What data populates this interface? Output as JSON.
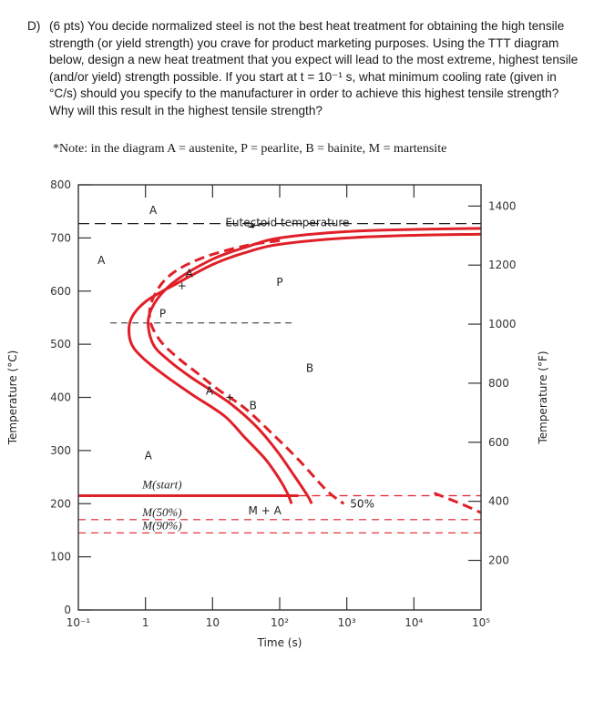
{
  "question": {
    "label": "D)",
    "text": "(6 pts) You decide normalized steel is not the best heat treatment for obtaining the high tensile strength (or yield strength) you crave for product marketing purposes. Using the TTT diagram below, design a new heat treatment that you expect will lead to the most extreme, highest tensile (and/or yield) strength possible. If you start at t = 10⁻¹ s, what minimum cooling rate (given in °C/s) should you specify to the manufacturer in order to achieve this highest tensile strength? Why will this result in the highest tensile strength?",
    "note": "*Note: in the diagram A = austenite, P = pearlite, B = bainite, M = martensite"
  },
  "chart_data": {
    "type": "line",
    "title": "",
    "xlabel": "Time (s)",
    "ylabel_left": "Temperature (°C)",
    "ylabel_right": "Temperature (°F)",
    "x_scale": "log",
    "xlim": [
      0.1,
      100000
    ],
    "ylim": [
      0,
      800
    ],
    "x_ticks": [
      {
        "value": 0.1,
        "label": "10⁻¹"
      },
      {
        "value": 1,
        "label": "1"
      },
      {
        "value": 10,
        "label": "10"
      },
      {
        "value": 100,
        "label": "10²"
      },
      {
        "value": 1000,
        "label": "10³"
      },
      {
        "value": 10000,
        "label": "10⁴"
      },
      {
        "value": 100000,
        "label": "10⁵"
      }
    ],
    "y_ticks_left": [
      {
        "value": 0,
        "label": "0"
      },
      {
        "value": 100,
        "label": "100"
      },
      {
        "value": 200,
        "label": "200"
      },
      {
        "value": 300,
        "label": "300"
      },
      {
        "value": 400,
        "label": "400"
      },
      {
        "value": 500,
        "label": "500"
      },
      {
        "value": 600,
        "label": "600"
      },
      {
        "value": 700,
        "label": "700"
      },
      {
        "value": 800,
        "label": "800"
      }
    ],
    "y_ticks_right_F": [
      {
        "value": 200,
        "label": "200"
      },
      {
        "value": 400,
        "label": "400"
      },
      {
        "value": 600,
        "label": "600"
      },
      {
        "value": 800,
        "label": "800"
      },
      {
        "value": 1000,
        "label": "1000"
      },
      {
        "value": 1200,
        "label": "1200"
      },
      {
        "value": 1400,
        "label": "1400"
      }
    ],
    "eutectoid": {
      "temperature": 727,
      "label": "Eutectoid temperature"
    },
    "pearlite_bainite_boundary": {
      "temperature": 540,
      "x_range": [
        0.3,
        150
      ]
    },
    "martensite_lines": [
      {
        "name": "M(start)",
        "temperature": 215
      },
      {
        "name": "M(50%)",
        "temperature": 170
      },
      {
        "name": "M(90%)",
        "temperature": 145
      }
    ],
    "series": [
      {
        "style": "solid",
        "points": [
          [
            100000,
            707
          ],
          [
            10000,
            705
          ],
          [
            1000,
            700
          ],
          [
            100,
            688
          ],
          [
            30,
            672
          ],
          [
            10,
            650
          ],
          [
            3,
            615
          ],
          [
            1,
            580
          ],
          [
            0.6,
            545
          ],
          [
            0.6,
            505
          ],
          [
            0.9,
            475
          ],
          [
            2,
            440
          ],
          [
            5,
            405
          ],
          [
            15,
            365
          ],
          [
            30,
            325
          ],
          [
            60,
            285
          ],
          [
            95,
            250
          ],
          [
            130,
            220
          ],
          [
            150,
            200
          ]
        ]
      },
      {
        "style": "solid",
        "points": [
          [
            100000,
            718
          ],
          [
            10000,
            716
          ],
          [
            1000,
            712
          ],
          [
            100,
            700
          ],
          [
            30,
            682
          ],
          [
            10,
            660
          ],
          [
            3,
            622
          ],
          [
            1.5,
            585
          ],
          [
            1.1,
            545
          ],
          [
            1.3,
            500
          ],
          [
            2.2,
            470
          ],
          [
            4.5,
            440
          ],
          [
            9,
            415
          ],
          [
            20,
            385
          ],
          [
            45,
            345
          ],
          [
            90,
            300
          ],
          [
            160,
            255
          ],
          [
            260,
            215
          ],
          [
            300,
            200
          ]
        ]
      },
      {
        "style": "dashed",
        "points": [
          [
            100,
            695
          ],
          [
            30,
            685
          ],
          [
            8,
            665
          ],
          [
            3,
            640
          ],
          [
            1.7,
            612
          ],
          [
            1.2,
            575
          ],
          [
            1.2,
            540
          ],
          [
            1.7,
            505
          ],
          [
            3,
            475
          ],
          [
            6,
            445
          ],
          [
            12,
            415
          ],
          [
            30,
            380
          ],
          [
            80,
            330
          ],
          [
            200,
            280
          ],
          [
            500,
            225
          ],
          [
            900,
            200
          ]
        ]
      },
      {
        "style": "dashed",
        "points": [
          [
            20000,
            220
          ],
          [
            50000,
            200
          ],
          [
            100000,
            183
          ]
        ]
      }
    ],
    "region_labels": [
      {
        "text": "A",
        "x": 1.3,
        "y": 752
      },
      {
        "text": "A",
        "x": 0.22,
        "y": 658
      },
      {
        "text": "A",
        "x": 1.1,
        "y": 290
      },
      {
        "text": "P",
        "x": 100,
        "y": 617
      },
      {
        "text": "B",
        "x": 280,
        "y": 455
      },
      {
        "text": "P",
        "x": 1.8,
        "y": 558
      },
      {
        "text": "A",
        "x": 4.5,
        "y": 633
      },
      {
        "text": "A",
        "x": 9,
        "y": 412
      },
      {
        "text": "B",
        "x": 40,
        "y": 385
      },
      {
        "text": "+",
        "x": 3.5,
        "y": 610
      },
      {
        "text": "+",
        "x": 18,
        "y": 400
      },
      {
        "text": "M + A",
        "x": 60,
        "y": 187
      },
      {
        "text": "50%",
        "x": 1700,
        "y": 200
      }
    ]
  }
}
